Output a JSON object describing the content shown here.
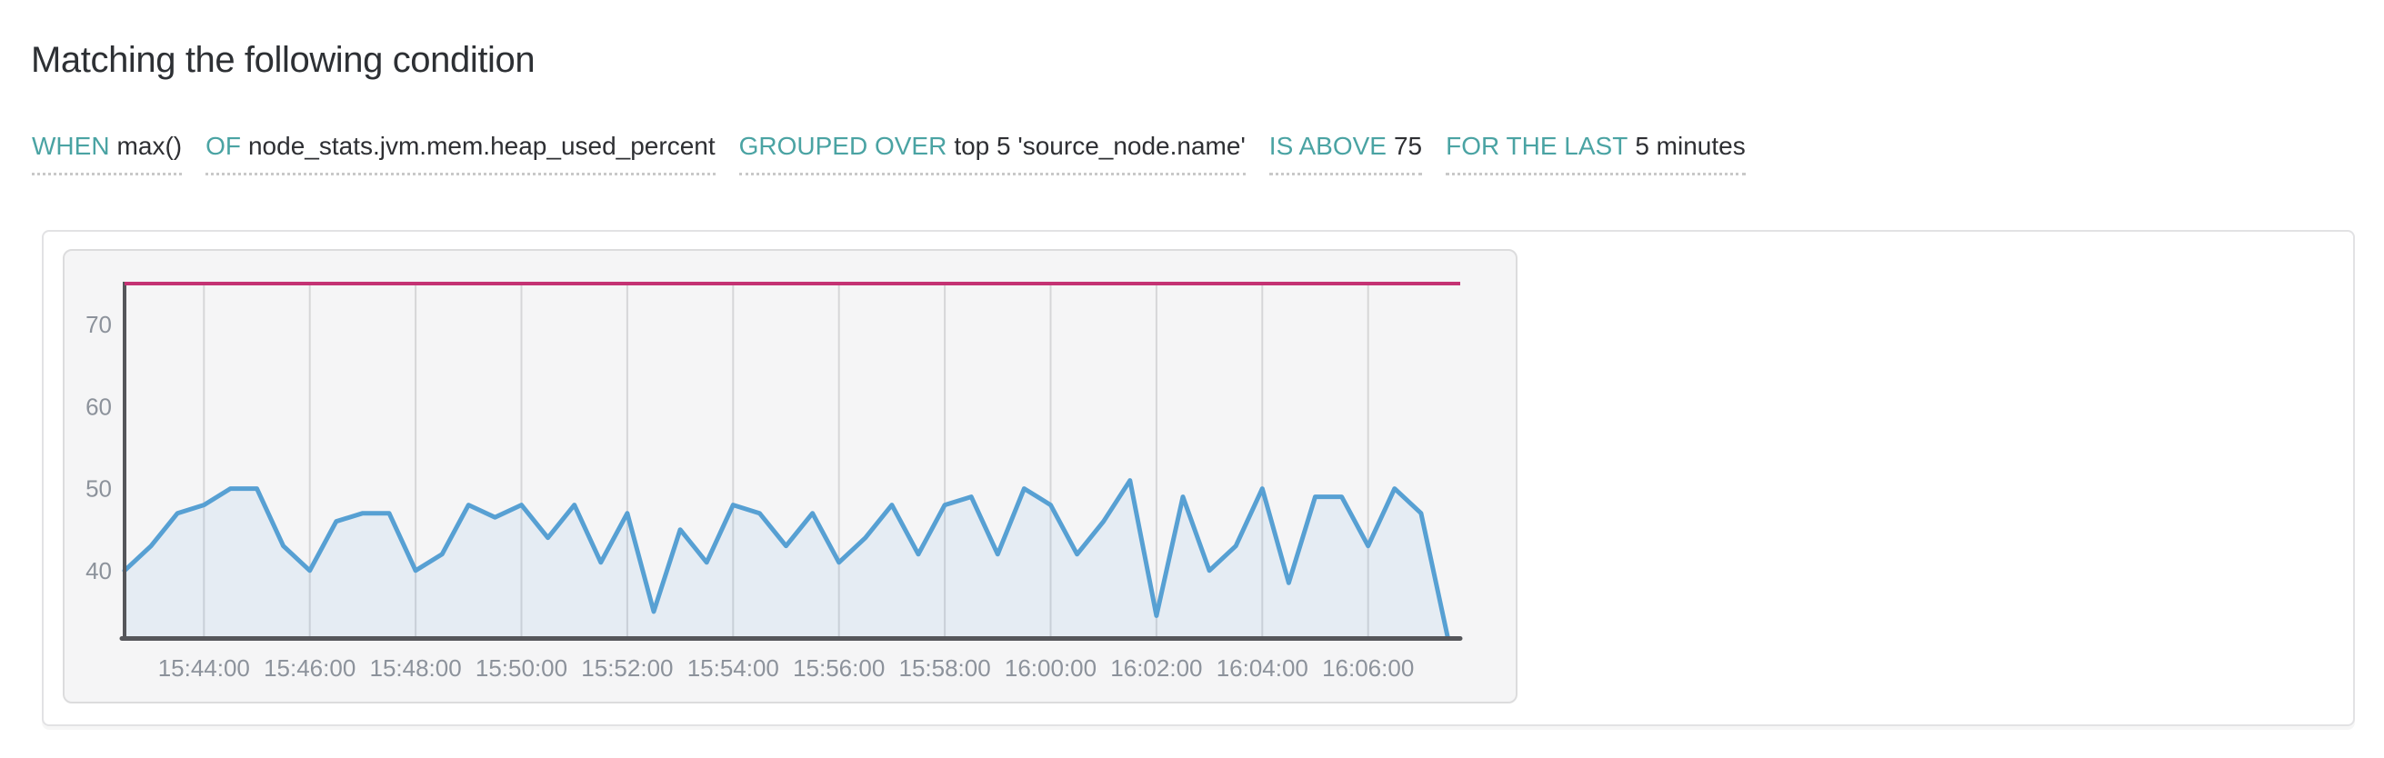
{
  "page": {
    "title": "Matching the following condition"
  },
  "condition": {
    "segments": [
      {
        "keyword": "WHEN",
        "value": "max()"
      },
      {
        "keyword": "OF",
        "value": "node_stats.jvm.mem.heap_used_percent"
      },
      {
        "keyword": "GROUPED OVER",
        "value": "top 5 'source_node.name'"
      },
      {
        "keyword": "IS ABOVE",
        "value": "75"
      },
      {
        "keyword": "FOR THE LAST",
        "value": "5 minutes"
      }
    ]
  },
  "chart_data": {
    "type": "area",
    "title": "",
    "xlabel": "",
    "ylabel": "",
    "grid": true,
    "legend": "none",
    "ylim": [
      32,
      75
    ],
    "threshold": 75,
    "x": [
      "15:42:30",
      "15:43:00",
      "15:43:30",
      "15:44:00",
      "15:44:30",
      "15:45:00",
      "15:45:30",
      "15:46:00",
      "15:46:30",
      "15:47:00",
      "15:47:30",
      "15:48:00",
      "15:48:30",
      "15:49:00",
      "15:49:30",
      "15:50:00",
      "15:50:30",
      "15:51:00",
      "15:51:30",
      "15:52:00",
      "15:52:30",
      "15:53:00",
      "15:53:30",
      "15:54:00",
      "15:54:30",
      "15:55:00",
      "15:55:30",
      "15:56:00",
      "15:56:30",
      "15:57:00",
      "15:57:30",
      "15:58:00",
      "15:58:30",
      "15:59:00",
      "15:59:30",
      "16:00:00",
      "16:00:30",
      "16:01:00",
      "16:01:30",
      "16:02:00",
      "16:02:30",
      "16:03:00",
      "16:03:30",
      "16:04:00",
      "16:04:30",
      "16:05:00",
      "16:05:30",
      "16:06:00",
      "16:06:30",
      "16:07:00",
      "16:07:30"
    ],
    "series": [
      {
        "name": "max() of node_stats.jvm.mem.heap_used_percent",
        "values": [
          40,
          43,
          47,
          48,
          50,
          50,
          43,
          40,
          46,
          47,
          47,
          40,
          42,
          48,
          46.5,
          48,
          44,
          48,
          41,
          47,
          35,
          45,
          41,
          48,
          47,
          43,
          47,
          41,
          44,
          48,
          42,
          48,
          49,
          42,
          50,
          48,
          42,
          46,
          51,
          34.5,
          49,
          40,
          43,
          50,
          38.5,
          49,
          49,
          43,
          50,
          47,
          32
        ]
      }
    ],
    "x_tick_labels": [
      "15:44:00",
      "15:46:00",
      "15:48:00",
      "15:50:00",
      "15:52:00",
      "15:54:00",
      "15:56:00",
      "15:58:00",
      "16:00:00",
      "16:02:00",
      "16:04:00",
      "16:06:00"
    ],
    "y_tick_labels": [
      70,
      60,
      50,
      40
    ],
    "colors": {
      "line": "#57a0d3",
      "area_fill": "rgba(87,160,211,0.10)",
      "threshold": "#c43273",
      "grid": "#d6d6d8",
      "axis": "#55565a",
      "tick_text": "#8c929b"
    }
  }
}
